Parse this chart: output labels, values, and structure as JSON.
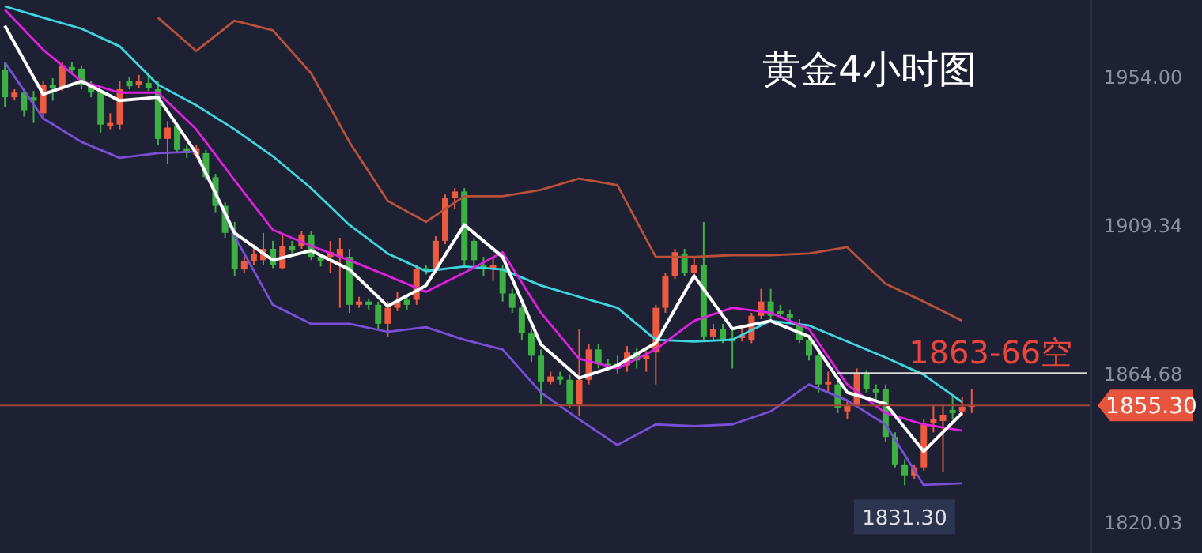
{
  "chart_data": {
    "type": "candlestick",
    "title": "黄金4小时图",
    "tick_labels": "y",
    "categories": [
      null,
      null,
      null,
      null,
      null,
      null,
      null,
      null,
      null,
      null,
      null,
      null,
      null,
      null,
      null,
      null,
      null,
      null,
      null,
      null,
      null,
      null,
      null,
      null,
      null,
      null,
      null,
      null,
      null,
      null,
      null,
      null,
      null,
      null,
      null,
      null,
      null,
      null,
      null,
      null,
      null,
      null,
      null,
      null,
      null,
      null,
      null,
      null,
      null,
      null,
      null,
      null,
      null,
      null,
      null,
      null,
      null,
      null,
      null,
      null,
      null,
      null,
      null,
      null,
      null,
      null,
      null,
      null,
      null,
      null,
      null,
      null,
      null,
      null,
      null,
      null,
      null,
      null,
      null,
      null,
      null,
      null,
      null,
      null,
      null,
      null,
      null,
      null,
      null,
      null,
      null,
      null,
      null,
      null,
      null,
      null,
      null,
      null,
      null,
      null,
      null,
      null,
      null,
      null,
      null,
      null,
      null,
      null,
      null,
      null,
      null,
      null,
      null,
      null
    ],
    "ohlc": [
      [
        1955.9,
        1958.3,
        1944.9,
        1947.8
      ],
      [
        1947.8,
        1950.2,
        1946.8,
        1949.2
      ],
      [
        1949.2,
        1950.2,
        1942.0,
        1943.9
      ],
      [
        1947.8,
        1949.7,
        1940.1,
        1946.8
      ],
      [
        1943.0,
        1952.6,
        1941.1,
        1951.6
      ],
      [
        1951.6,
        1953.5,
        1946.8,
        1950.6
      ],
      [
        1950.6,
        1958.3,
        1949.7,
        1957.4
      ],
      [
        1956.9,
        1958.3,
        1955.0,
        1955.9
      ],
      [
        1956.4,
        1957.4,
        1950.2,
        1951.6
      ],
      [
        1951.6,
        1952.6,
        1947.8,
        1949.2
      ],
      [
        1949.2,
        1950.2,
        1937.2,
        1939.6
      ],
      [
        1939.2,
        1943.0,
        1938.2,
        1940.1
      ],
      [
        1939.6,
        1952.6,
        1938.2,
        1950.2
      ],
      [
        1952.6,
        1954.0,
        1950.2,
        1951.1
      ],
      [
        1951.6,
        1954.5,
        1950.6,
        1952.6
      ],
      [
        1952.1,
        1955.0,
        1949.7,
        1950.6
      ],
      [
        1950.2,
        1952.6,
        1933.4,
        1935.3
      ],
      [
        1935.3,
        1940.6,
        1927.7,
        1938.7
      ],
      [
        1939.2,
        1940.1,
        1931.0,
        1932.0
      ],
      [
        1932.5,
        1933.4,
        1929.6,
        1931.0
      ],
      [
        1930.5,
        1933.4,
        1929.6,
        1932.5
      ],
      [
        1931.0,
        1932.0,
        1922.9,
        1923.8
      ],
      [
        1923.8,
        1924.8,
        1913.3,
        1915.2
      ],
      [
        1915.2,
        1916.2,
        1905.6,
        1907.1
      ],
      [
        1907.1,
        1910.4,
        1894.2,
        1896.1
      ],
      [
        1896.1,
        1899.9,
        1895.1,
        1898.5
      ],
      [
        1898.5,
        1903.7,
        1897.5,
        1900.9
      ],
      [
        1898.9,
        1907.1,
        1897.5,
        1902.3
      ],
      [
        1902.3,
        1904.7,
        1896.5,
        1897.5
      ],
      [
        1896.5,
        1906.6,
        1896.1,
        1903.2
      ],
      [
        1903.2,
        1904.7,
        1900.9,
        1901.8
      ],
      [
        1903.2,
        1907.6,
        1902.3,
        1906.6
      ],
      [
        1906.6,
        1907.6,
        1898.9,
        1899.9
      ],
      [
        1899.9,
        1900.9,
        1897.0,
        1898.5
      ],
      [
        1899.9,
        1904.7,
        1895.1,
        1901.3
      ],
      [
        1899.9,
        1905.6,
        1884.6,
        1902.3
      ],
      [
        1899.9,
        1902.3,
        1883.1,
        1885.5
      ],
      [
        1885.5,
        1887.9,
        1884.6,
        1886.5
      ],
      [
        1886.5,
        1887.4,
        1884.1,
        1885.5
      ],
      [
        1885.5,
        1886.5,
        1878.3,
        1879.8
      ],
      [
        1879.8,
        1886.5,
        1876.0,
        1884.6
      ],
      [
        1884.6,
        1889.4,
        1883.6,
        1886.5
      ],
      [
        1887.0,
        1887.9,
        1884.1,
        1885.5
      ],
      [
        1887.0,
        1897.5,
        1885.5,
        1896.1
      ],
      [
        1896.5,
        1897.5,
        1894.6,
        1895.6
      ],
      [
        1896.1,
        1906.1,
        1895.1,
        1904.7
      ],
      [
        1904.7,
        1918.6,
        1903.7,
        1917.6
      ],
      [
        1917.6,
        1920.5,
        1914.3,
        1919.5
      ],
      [
        1919.5,
        1920.5,
        1897.5,
        1898.9
      ],
      [
        1904.7,
        1905.6,
        1896.1,
        1898.9
      ],
      [
        1897.5,
        1899.9,
        1894.2,
        1896.1
      ],
      [
        1896.1,
        1899.9,
        1892.7,
        1897.5
      ],
      [
        1896.5,
        1897.5,
        1886.5,
        1888.9
      ],
      [
        1888.9,
        1890.3,
        1883.1,
        1884.6
      ],
      [
        1884.6,
        1885.5,
        1875.0,
        1876.9
      ],
      [
        1876.9,
        1878.3,
        1868.3,
        1870.2
      ],
      [
        1870.2,
        1872.1,
        1855.8,
        1862.5
      ],
      [
        1862.5,
        1865.4,
        1861.6,
        1864.0
      ],
      [
        1864.0,
        1865.4,
        1861.6,
        1863.0
      ],
      [
        1863.0,
        1864.5,
        1854.4,
        1855.8
      ],
      [
        1855.8,
        1878.3,
        1852.0,
        1863.0
      ],
      [
        1863.0,
        1873.6,
        1861.6,
        1872.1
      ],
      [
        1872.1,
        1873.6,
        1866.4,
        1867.8
      ],
      [
        1867.8,
        1869.3,
        1865.9,
        1866.9
      ],
      [
        1867.8,
        1870.2,
        1864.9,
        1866.4
      ],
      [
        1867.3,
        1873.1,
        1865.4,
        1871.2
      ],
      [
        1871.2,
        1872.6,
        1866.4,
        1868.8
      ],
      [
        1869.3,
        1871.6,
        1865.4,
        1870.2
      ],
      [
        1871.2,
        1885.5,
        1861.6,
        1884.6
      ],
      [
        1884.6,
        1895.1,
        1883.1,
        1894.2
      ],
      [
        1894.2,
        1902.3,
        1893.2,
        1901.3
      ],
      [
        1900.9,
        1902.3,
        1894.2,
        1895.1
      ],
      [
        1895.1,
        1899.9,
        1894.2,
        1897.5
      ],
      [
        1897.5,
        1910.4,
        1875.0,
        1876.0
      ],
      [
        1876.0,
        1879.8,
        1875.0,
        1878.3
      ],
      [
        1878.3,
        1879.8,
        1874.0,
        1875.0
      ],
      [
        1875.5,
        1878.3,
        1866.4,
        1874.5
      ],
      [
        1875.5,
        1878.3,
        1874.5,
        1876.4
      ],
      [
        1875.0,
        1883.1,
        1874.0,
        1882.2
      ],
      [
        1882.2,
        1890.3,
        1881.2,
        1886.5
      ],
      [
        1886.5,
        1890.3,
        1880.7,
        1882.2
      ],
      [
        1883.6,
        1885.5,
        1881.7,
        1882.7
      ],
      [
        1882.7,
        1884.1,
        1880.7,
        1881.7
      ],
      [
        1879.8,
        1881.2,
        1874.0,
        1875.0
      ],
      [
        1875.0,
        1876.0,
        1868.8,
        1870.2
      ],
      [
        1870.2,
        1871.6,
        1859.2,
        1861.6
      ],
      [
        1861.6,
        1865.4,
        1859.2,
        1862.5
      ],
      [
        1861.6,
        1863.0,
        1853.0,
        1854.4
      ],
      [
        1853.5,
        1856.8,
        1851.1,
        1855.4
      ],
      [
        1855.4,
        1866.4,
        1854.4,
        1864.9
      ],
      [
        1864.9,
        1865.9,
        1859.2,
        1860.2
      ],
      [
        1860.2,
        1861.6,
        1856.8,
        1859.2
      ],
      [
        1860.2,
        1861.6,
        1844.4,
        1845.8
      ],
      [
        1845.8,
        1847.2,
        1836.7,
        1837.6
      ],
      [
        1837.6,
        1839.1,
        1831.3,
        1834.3
      ],
      [
        1834.3,
        1837.6,
        1833.3,
        1836.7
      ],
      [
        1836.7,
        1851.1,
        1835.7,
        1849.6
      ],
      [
        1850.1,
        1855.4,
        1847.2,
        1851.1
      ],
      [
        1850.6,
        1855.4,
        1835.3,
        1852.5
      ],
      [
        1853.9,
        1857.8,
        1851.1,
        1853.0
      ],
      [
        1853.5,
        1857.8,
        1852.0,
        1854.9
      ],
      [
        1854.9,
        1860.2,
        1853.0,
        1855.3
      ],
      null,
      null,
      null,
      null,
      null,
      null,
      null,
      null,
      null,
      null,
      null,
      null
    ],
    "colors": [
      "#3cb043",
      "#ec5a40",
      "#3cb043",
      "#3cb043",
      "#ec5a40",
      "#3cb043",
      "#ec5a40",
      "#3cb043",
      "#3cb043",
      "#3cb043",
      "#3cb043",
      "#ec5a40",
      "#ec5a40",
      "#3cb043",
      "#ec5a40",
      "#3cb043",
      "#3cb043",
      "#ec5a40",
      "#3cb043",
      "#3cb043",
      "#ec5a40",
      "#3cb043",
      "#3cb043",
      "#3cb043",
      "#3cb043",
      "#ec5a40",
      "#ec5a40",
      "#ec5a40",
      "#3cb043",
      "#ec5a40",
      "#3cb043",
      "#ec5a40",
      "#3cb043",
      "#3cb043",
      "#ec5a40",
      "#ec5a40",
      "#3cb043",
      "#ec5a40",
      "#3cb043",
      "#3cb043",
      "#ec5a40",
      "#ec5a40",
      "#3cb043",
      "#ec5a40",
      "#3cb043",
      "#ec5a40",
      "#ec5a40",
      "#ec5a40",
      "#3cb043",
      "#3cb043",
      "#3cb043",
      "#ec5a40",
      "#3cb043",
      "#3cb043",
      "#3cb043",
      "#3cb043",
      "#3cb043",
      "#ec5a40",
      "#3cb043",
      "#3cb043",
      "#ec5a40",
      "#ec5a40",
      "#3cb043",
      "#3cb043",
      "#3cb043",
      "#ec5a40",
      "#3cb043",
      "#ec5a40",
      "#ec5a40",
      "#ec5a40",
      "#ec5a40",
      "#3cb043",
      "#ec5a40",
      "#3cb043",
      "#ec5a40",
      "#3cb043",
      "#3cb043",
      "#ec5a40",
      "#ec5a40",
      "#ec5a40",
      "#3cb043",
      "#3cb043",
      "#3cb043",
      "#3cb043",
      "#3cb043",
      "#3cb043",
      "#ec5a40",
      "#3cb043",
      "#ec5a40",
      "#ec5a40",
      "#3cb043",
      "#3cb043",
      "#3cb043",
      "#3cb043",
      "#3cb043",
      "#ec5a40",
      "#ec5a40",
      "#ec5a40",
      "#ec5a40",
      "#3cb043",
      "#ec5a40",
      "#ec5a40",
      null,
      null,
      null,
      null,
      null,
      null,
      null,
      null,
      null,
      null,
      null,
      null
    ],
    "series": [
      {
        "type": "line",
        "color": "#b8503a",
        "values": [
          null,
          null,
          null,
          null,
          null,
          null,
          null,
          null,
          null,
          null,
          null,
          null,
          null,
          null,
          null,
          null,
          1971.7,
          null,
          null,
          null,
          1961.7,
          null,
          null,
          null,
          1970.8,
          null,
          null,
          null,
          1967.9,
          null,
          null,
          null,
          1955.0,
          null,
          null,
          null,
          1934.4,
          null,
          null,
          null,
          1916.7,
          null,
          null,
          null,
          1910.4,
          null,
          null,
          null,
          1918.1,
          null,
          null,
          null,
          1918.1,
          null,
          null,
          null,
          1920.0,
          null,
          null,
          null,
          1923.4,
          null,
          null,
          null,
          1921.4,
          null,
          null,
          null,
          1899.9,
          null,
          null,
          null,
          1899.9,
          null,
          null,
          null,
          1900.4,
          null,
          null,
          null,
          1900.4,
          null,
          null,
          null,
          1900.9,
          null,
          null,
          null,
          1902.8,
          null,
          null,
          null,
          1891.8,
          null,
          null,
          null,
          1886.5,
          null,
          null,
          null,
          1880.7,
          null,
          null,
          null,
          null,
          null,
          null,
          null,
          null,
          null,
          null,
          null,
          null,
          null
        ]
      },
      {
        "type": "line",
        "color": "#7a4fd8",
        "values": [
          1958.3,
          null,
          null,
          null,
          1941.5,
          null,
          null,
          null,
          1934.4,
          null,
          null,
          null,
          1929.6,
          null,
          null,
          null,
          1931.0,
          null,
          null,
          null,
          1931.5,
          null,
          null,
          null,
          1906.1,
          null,
          null,
          null,
          1885.5,
          null,
          null,
          null,
          1879.8,
          null,
          null,
          null,
          1879.8,
          null,
          null,
          null,
          1877.4,
          null,
          null,
          null,
          1878.8,
          null,
          null,
          null,
          1875.0,
          null,
          null,
          null,
          1872.1,
          null,
          null,
          null,
          1859.2,
          null,
          null,
          null,
          1851.1,
          null,
          null,
          null,
          1843.4,
          null,
          null,
          null,
          1849.6,
          null,
          null,
          null,
          1849.1,
          null,
          null,
          null,
          1849.6,
          null,
          null,
          null,
          1853.5,
          null,
          null,
          null,
          1861.6,
          null,
          null,
          null,
          1856.8,
          null,
          null,
          null,
          1849.6,
          null,
          null,
          null,
          1831.4,
          null,
          null,
          null,
          1831.9,
          null,
          null,
          null,
          null,
          null,
          null,
          null,
          null,
          null,
          null,
          null,
          null,
          null
        ]
      },
      {
        "type": "line",
        "color": "#3dd6e0",
        "values": [
          1975.1,
          null,
          null,
          null,
          1971.7,
          null,
          null,
          null,
          1968.4,
          null,
          null,
          null,
          1963.1,
          null,
          null,
          null,
          1951.6,
          null,
          null,
          null,
          1945.4,
          null,
          null,
          null,
          1938.2,
          null,
          null,
          null,
          1930.1,
          null,
          null,
          null,
          1920.5,
          null,
          null,
          null,
          1909.5,
          null,
          null,
          null,
          1900.9,
          null,
          null,
          null,
          1895.6,
          null,
          null,
          null,
          1897.0,
          null,
          null,
          null,
          1896.1,
          null,
          null,
          null,
          1891.3,
          null,
          null,
          null,
          1887.9,
          null,
          null,
          null,
          1884.6,
          null,
          null,
          null,
          1875.0,
          null,
          null,
          null,
          1874.5,
          null,
          null,
          null,
          1875.0,
          null,
          null,
          null,
          1880.7,
          null,
          null,
          null,
          1879.3,
          null,
          null,
          null,
          1874.5,
          null,
          null,
          null,
          1869.7,
          null,
          null,
          null,
          1864.5,
          null,
          null,
          null,
          1856.3,
          null,
          null,
          null,
          null,
          null,
          null,
          null,
          null,
          null,
          null,
          null,
          null,
          null
        ]
      },
      {
        "type": "line",
        "color": "#e020e0",
        "values": [
          1974.1,
          null,
          null,
          null,
          1962.1,
          null,
          null,
          null,
          1952.6,
          null,
          null,
          null,
          1949.2,
          null,
          null,
          null,
          1949.2,
          null,
          null,
          null,
          1938.2,
          null,
          null,
          null,
          1922.9,
          null,
          null,
          null,
          1908.0,
          null,
          null,
          null,
          1903.2,
          null,
          null,
          null,
          1898.9,
          null,
          null,
          null,
          1894.2,
          null,
          null,
          null,
          1889.4,
          null,
          null,
          null,
          1895.1,
          null,
          null,
          null,
          1901.3,
          null,
          null,
          null,
          1883.1,
          null,
          null,
          null,
          1869.3,
          null,
          null,
          null,
          1866.4,
          null,
          null,
          null,
          1872.1,
          null,
          null,
          null,
          1880.7,
          null,
          null,
          null,
          1884.6,
          null,
          null,
          null,
          1883.1,
          null,
          null,
          null,
          1878.3,
          null,
          null,
          null,
          1861.6,
          null,
          null,
          null,
          1853.0,
          null,
          null,
          null,
          1849.6,
          null,
          null,
          null,
          1847.7,
          null,
          null,
          null,
          null,
          null,
          null,
          null,
          null,
          null,
          null,
          null,
          null,
          null
        ]
      },
      {
        "type": "line",
        "color": "#ffffff",
        "values": [
          1969.3,
          null,
          null,
          null,
          1948.7,
          null,
          null,
          null,
          1952.6,
          null,
          null,
          null,
          1946.8,
          null,
          null,
          null,
          1947.8,
          null,
          null,
          null,
          1931.0,
          null,
          null,
          null,
          1907.1,
          null,
          null,
          null,
          1898.9,
          null,
          null,
          null,
          1901.8,
          null,
          null,
          null,
          1896.1,
          null,
          null,
          null,
          1885.1,
          null,
          null,
          null,
          1891.3,
          null,
          null,
          null,
          1909.5,
          null,
          null,
          null,
          1899.9,
          null,
          null,
          null,
          1873.6,
          null,
          null,
          null,
          1863.5,
          null,
          null,
          null,
          1867.3,
          null,
          null,
          null,
          1874.0,
          null,
          null,
          null,
          1894.2,
          null,
          null,
          null,
          1878.3,
          null,
          null,
          null,
          1880.7,
          null,
          null,
          null,
          1876.0,
          null,
          null,
          null,
          1859.2,
          null,
          null,
          null,
          1855.8,
          null,
          null,
          null,
          1841.5,
          null,
          null,
          null,
          1853.0,
          null,
          null,
          null,
          null,
          null,
          null,
          null,
          null,
          null,
          null,
          null,
          null,
          null
        ]
      }
    ],
    "ylim": [
      1811,
      1977
    ],
    "yticks": [
      {
        "value": 1954,
        "label": "1954.00"
      },
      1909.34,
      1864.68,
      1820.03
    ],
    "ref_lines": [
      {
        "axis": "y",
        "value": 1855.3,
        "label": "1855.30",
        "color": "#a0443a"
      },
      {
        "axis": "y",
        "value": 1865,
        "label": "1863-66空",
        "color": "#d8d8d8"
      }
    ],
    "annotations": [
      {
        "text": "1831.30",
        "y": 1831.3
      }
    ]
  }
}
